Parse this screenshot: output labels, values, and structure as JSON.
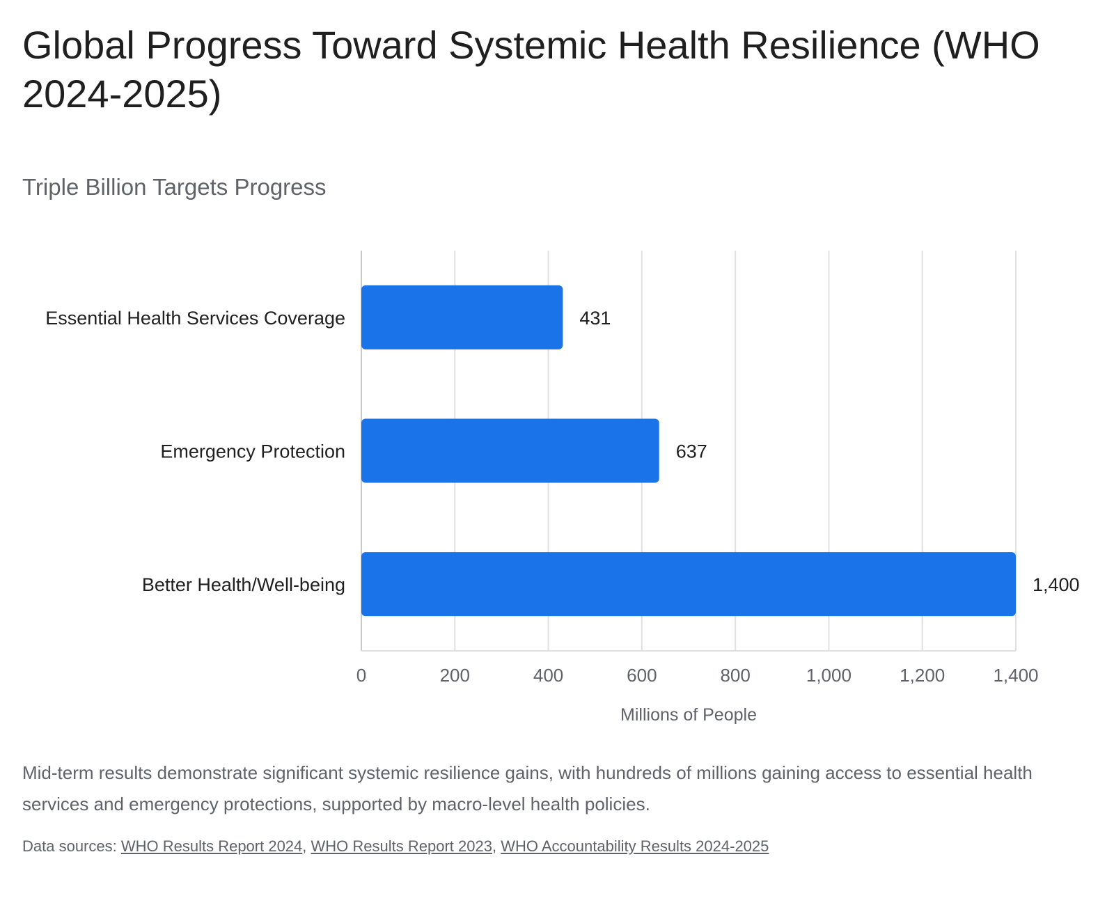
{
  "header": {
    "title": "Global Progress Toward Systemic Health Resilience (WHO 2024-2025)"
  },
  "chart_data": {
    "type": "bar",
    "orientation": "horizontal",
    "title": "Triple Billion Targets Progress",
    "categories": [
      "Essential Health Services Coverage",
      "Emergency Protection",
      "Better Health/Well-being"
    ],
    "values": [
      431,
      637,
      1400
    ],
    "value_labels": [
      "431",
      "637",
      "1,400"
    ],
    "xlabel": "Millions of People",
    "ylabel": "",
    "xlim": [
      0,
      1400
    ],
    "x_ticks": [
      0,
      200,
      400,
      600,
      800,
      1000,
      1200,
      1400
    ],
    "x_tick_labels": [
      "0",
      "200",
      "400",
      "600",
      "800",
      "1,000",
      "1,200",
      "1,400"
    ],
    "grid": true,
    "bar_color": "#1a73e8"
  },
  "footer": {
    "description": "Mid-term results demonstrate significant systemic resilience gains, with hundreds of millions gaining access to essential health services and emergency protections, supported by macro-level health policies.",
    "sources_prefix": "Data sources: ",
    "sources": [
      "WHO Results Report 2024",
      "WHO Results Report 2023",
      "WHO Accountability Results 2024-2025"
    ],
    "separator": ", "
  }
}
